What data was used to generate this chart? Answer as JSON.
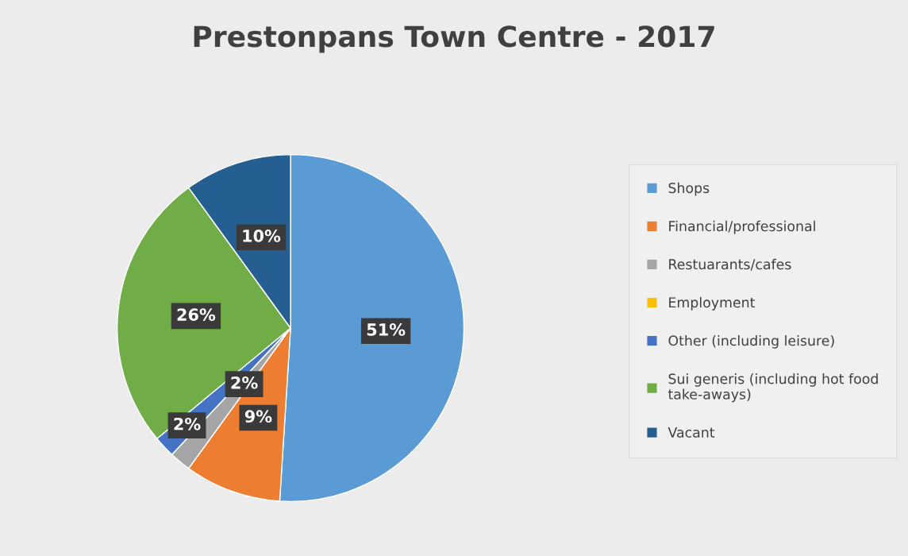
{
  "chart_data": {
    "type": "pie",
    "title": "Prestonpans Town Centre - 2017",
    "categories": [
      "Shops",
      "Financial/professional",
      "Restuarants/cafes",
      "Employment",
      "Other (including leisure)",
      "Sui generis (including hot food take-aways)",
      "Vacant"
    ],
    "values": [
      51,
      9,
      2,
      0,
      2,
      26,
      10
    ],
    "colors": [
      "#5b9bd5",
      "#ed7d31",
      "#a5a5a5",
      "#ffc000",
      "#4472c4",
      "#70ad47",
      "#255e91"
    ],
    "value_labels": [
      "51%",
      "9%",
      "2%",
      null,
      "2%",
      "26%",
      "10%"
    ],
    "legend": "right"
  }
}
